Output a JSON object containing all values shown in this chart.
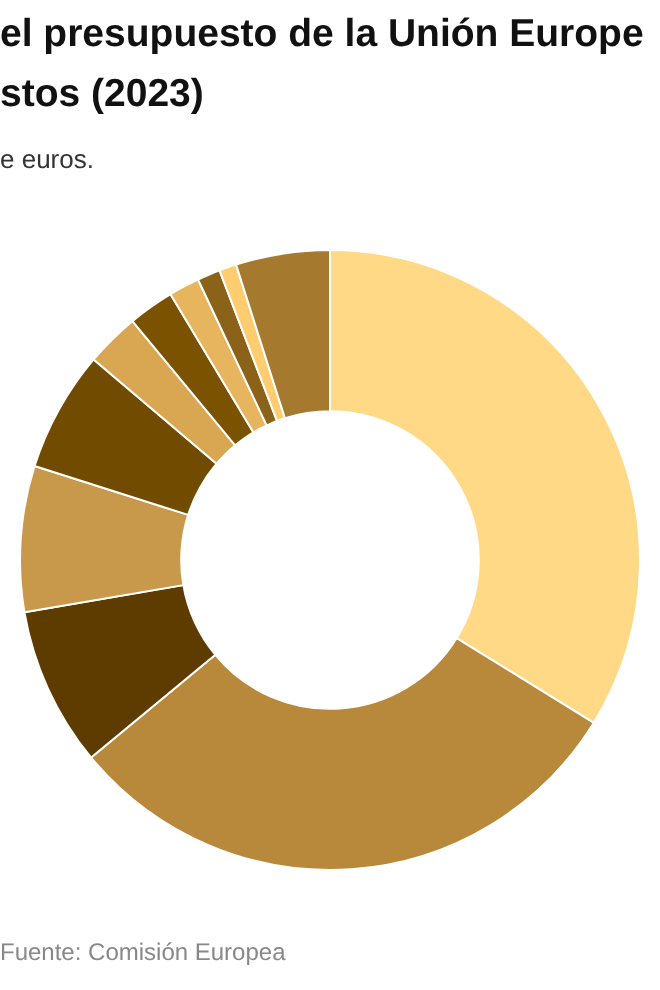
{
  "chart_data": {
    "type": "donut",
    "title": "el presupuesto de la Unión Europe\nstos (2023)",
    "subtitle": "e euros.",
    "annotations": [
      "Fuente: Comisión Europea"
    ],
    "categories": [
      null,
      null,
      null,
      null,
      null,
      null,
      null,
      null,
      null,
      null,
      null
    ],
    "values": [
      33.8,
      30.2,
      8.3,
      7.6,
      6.3,
      2.8,
      2.4,
      1.6,
      1.2,
      0.9,
      4.9
    ],
    "colors": [
      "#ffd986",
      "#b8893a",
      "#5e3c00",
      "#c9994b",
      "#714c00",
      "#d9a652",
      "#7a5200",
      "#e8b55f",
      "#8a6218",
      "#ffcc70",
      "#a67a2e"
    ]
  }
}
